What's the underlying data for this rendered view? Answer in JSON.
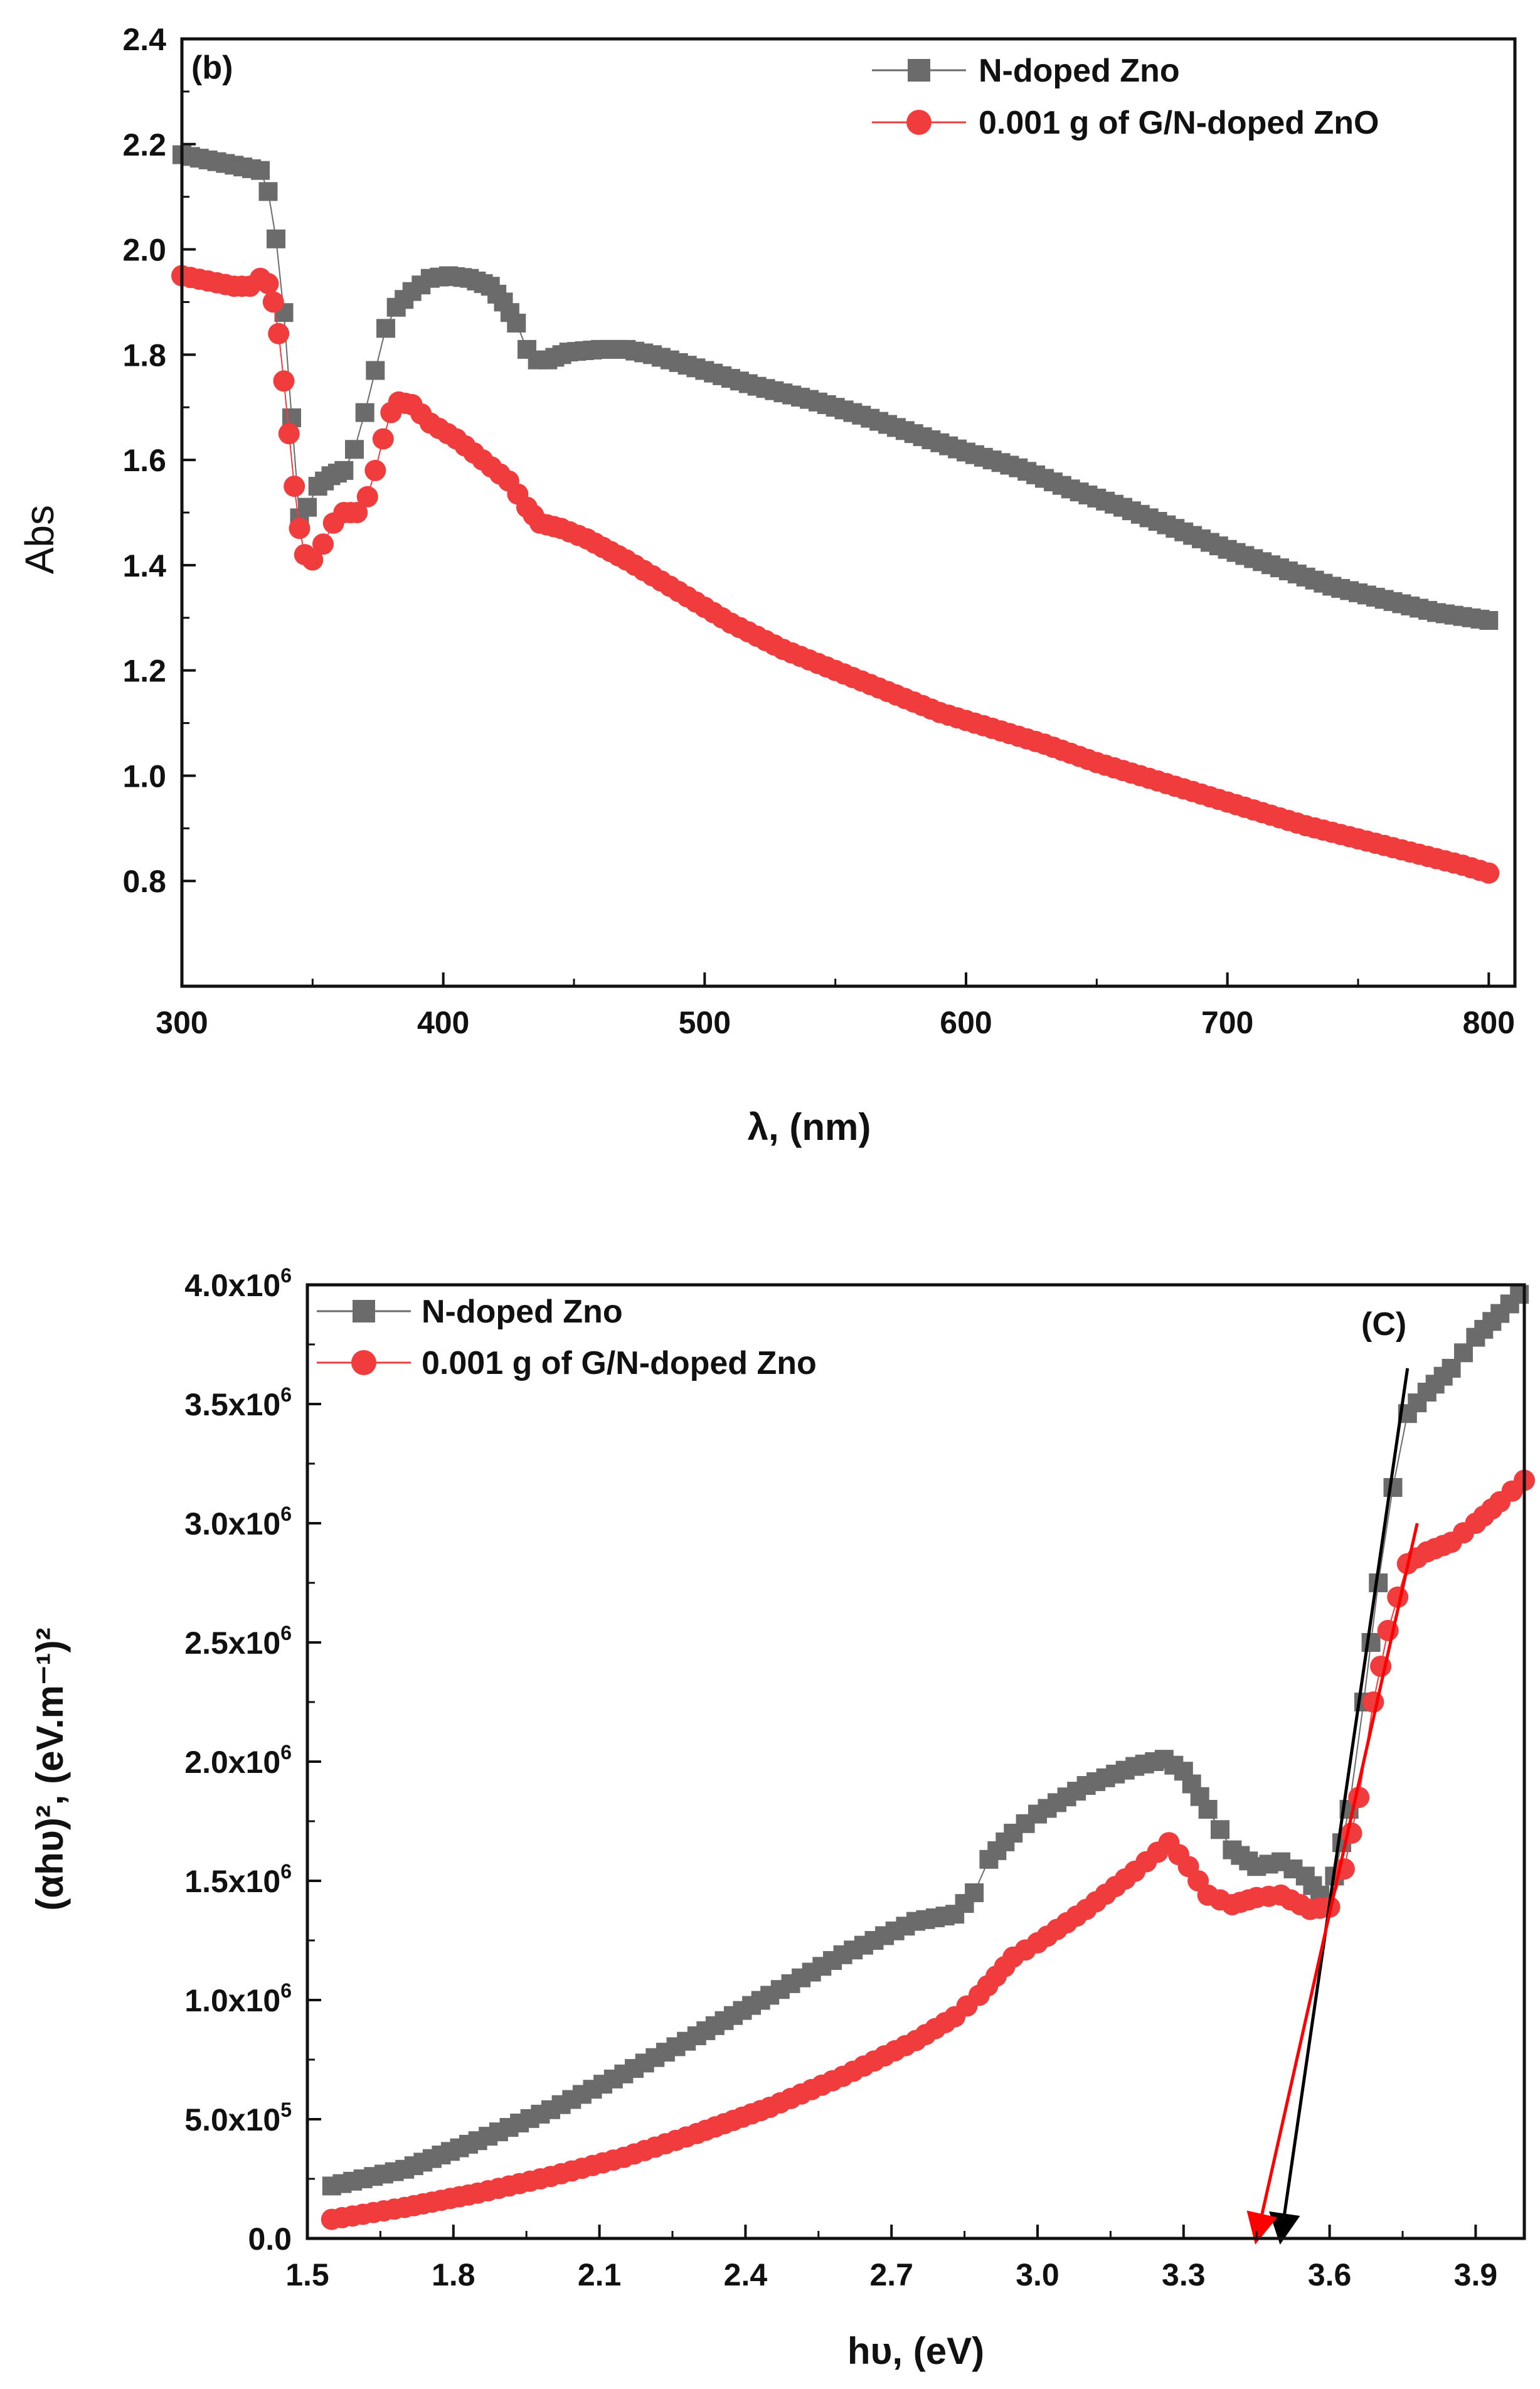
{
  "chart_data": [
    {
      "type": "scatter",
      "panel_label": "(b)",
      "xlabel": "λ, (nm)",
      "ylabel": "Abs",
      "xlim": [
        300,
        810
      ],
      "ylim": [
        0.6,
        2.4
      ],
      "x_ticks": [
        "300",
        "400",
        "500",
        "600",
        "700",
        "800"
      ],
      "y_ticks": [
        "0.8",
        "1.0",
        "1.2",
        "1.4",
        "1.6",
        "1.8",
        "2.0",
        "2.2",
        "2.4"
      ],
      "legend_position": "top-right",
      "series": [
        {
          "name": "N-doped Zno",
          "marker": "square",
          "color": "#6b6b6b",
          "points": [
            [
              300,
              2.18
            ],
            [
              310,
              2.17
            ],
            [
              320,
              2.16
            ],
            [
              330,
              2.15
            ],
            [
              333,
              2.11
            ],
            [
              336,
              2.02
            ],
            [
              339,
              1.88
            ],
            [
              342,
              1.68
            ],
            [
              345,
              1.49
            ],
            [
              348,
              1.51
            ],
            [
              352,
              1.55
            ],
            [
              357,
              1.57
            ],
            [
              362,
              1.58
            ],
            [
              366,
              1.62
            ],
            [
              370,
              1.69
            ],
            [
              374,
              1.77
            ],
            [
              378,
              1.85
            ],
            [
              382,
              1.89
            ],
            [
              388,
              1.92
            ],
            [
              395,
              1.945
            ],
            [
              402,
              1.95
            ],
            [
              410,
              1.945
            ],
            [
              418,
              1.93
            ],
            [
              423,
              1.9
            ],
            [
              428,
              1.86
            ],
            [
              432,
              1.81
            ],
            [
              436,
              1.79
            ],
            [
              440,
              1.79
            ],
            [
              448,
              1.805
            ],
            [
              460,
              1.81
            ],
            [
              470,
              1.81
            ],
            [
              480,
              1.8
            ],
            [
              500,
              1.77
            ],
            [
              520,
              1.74
            ],
            [
              540,
              1.715
            ],
            [
              560,
              1.685
            ],
            [
              580,
              1.65
            ],
            [
              600,
              1.615
            ],
            [
              620,
              1.585
            ],
            [
              640,
              1.545
            ],
            [
              660,
              1.51
            ],
            [
              680,
              1.47
            ],
            [
              700,
              1.43
            ],
            [
              720,
              1.395
            ],
            [
              740,
              1.36
            ],
            [
              760,
              1.335
            ],
            [
              780,
              1.31
            ],
            [
              800,
              1.295
            ]
          ]
        },
        {
          "name": "0.001 g of G/N-doped ZnO",
          "marker": "circle",
          "color": "#f03c3c",
          "points": [
            [
              300,
              1.95
            ],
            [
              310,
              1.94
            ],
            [
              320,
              1.93
            ],
            [
              326,
              1.93
            ],
            [
              330,
              1.945
            ],
            [
              333,
              1.935
            ],
            [
              335,
              1.9
            ],
            [
              337,
              1.84
            ],
            [
              339,
              1.75
            ],
            [
              341,
              1.65
            ],
            [
              343,
              1.55
            ],
            [
              345,
              1.47
            ],
            [
              347,
              1.42
            ],
            [
              350,
              1.41
            ],
            [
              354,
              1.44
            ],
            [
              358,
              1.48
            ],
            [
              362,
              1.5
            ],
            [
              367,
              1.5
            ],
            [
              371,
              1.53
            ],
            [
              374,
              1.58
            ],
            [
              377,
              1.64
            ],
            [
              380,
              1.69
            ],
            [
              383,
              1.71
            ],
            [
              388,
              1.705
            ],
            [
              395,
              1.67
            ],
            [
              405,
              1.64
            ],
            [
              415,
              1.6
            ],
            [
              425,
              1.56
            ],
            [
              432,
              1.51
            ],
            [
              437,
              1.48
            ],
            [
              445,
              1.47
            ],
            [
              455,
              1.45
            ],
            [
              470,
              1.41
            ],
            [
              490,
              1.35
            ],
            [
              510,
              1.29
            ],
            [
              530,
              1.24
            ],
            [
              550,
              1.2
            ],
            [
              570,
              1.16
            ],
            [
              590,
              1.12
            ],
            [
              610,
              1.09
            ],
            [
              630,
              1.06
            ],
            [
              650,
              1.025
            ],
            [
              670,
              0.995
            ],
            [
              690,
              0.965
            ],
            [
              710,
              0.935
            ],
            [
              730,
              0.905
            ],
            [
              750,
              0.88
            ],
            [
              770,
              0.855
            ],
            [
              790,
              0.83
            ],
            [
              800,
              0.815
            ]
          ]
        }
      ]
    },
    {
      "type": "scatter",
      "panel_label": "(C)",
      "xlabel": "hυ, (eV)",
      "ylabel": "(αhυ)², (eV.m⁻¹)²",
      "xlim": [
        1.5,
        4.0
      ],
      "ylim": [
        0,
        4000000
      ],
      "x_ticks": [
        "1.5",
        "1.8",
        "2.1",
        "2.4",
        "2.7",
        "3.0",
        "3.3",
        "3.6",
        "3.9"
      ],
      "y_ticks": [
        {
          "label": "0.0",
          "mant": "",
          "exp": ""
        },
        {
          "label": "5.0x10",
          "mant": "5.0x10",
          "exp": "5"
        },
        {
          "label": "1.0x10",
          "mant": "1.0x10",
          "exp": "6"
        },
        {
          "label": "1.5x10",
          "mant": "1.5x10",
          "exp": "6"
        },
        {
          "label": "2.0x10",
          "mant": "2.0x10",
          "exp": "6"
        },
        {
          "label": "2.5x10",
          "mant": "2.5x10",
          "exp": "6"
        },
        {
          "label": "3.0x10",
          "mant": "3.0x10",
          "exp": "6"
        },
        {
          "label": "3.5x10",
          "mant": "3.5x10",
          "exp": "6"
        },
        {
          "label": "4.0x10",
          "mant": "4.0x10",
          "exp": "6"
        }
      ],
      "legend_position": "top-left",
      "series": [
        {
          "name": "N-doped Zno",
          "marker": "square",
          "color": "#6b6b6b",
          "points": [
            [
              1.55,
              220000
            ],
            [
              1.7,
              290000
            ],
            [
              1.85,
              410000
            ],
            [
              2.0,
              540000
            ],
            [
              2.15,
              690000
            ],
            [
              2.3,
              850000
            ],
            [
              2.45,
              1020000
            ],
            [
              2.6,
              1190000
            ],
            [
              2.75,
              1330000
            ],
            [
              2.83,
              1360000
            ],
            [
              2.87,
              1450000
            ],
            [
              2.9,
              1590000
            ],
            [
              2.95,
              1700000
            ],
            [
              3.0,
              1780000
            ],
            [
              3.1,
              1900000
            ],
            [
              3.2,
              1980000
            ],
            [
              3.26,
              2010000
            ],
            [
              3.3,
              1960000
            ],
            [
              3.35,
              1800000
            ],
            [
              3.4,
              1630000
            ],
            [
              3.45,
              1560000
            ],
            [
              3.5,
              1580000
            ],
            [
              3.55,
              1520000
            ],
            [
              3.58,
              1440000
            ],
            [
              3.61,
              1520000
            ],
            [
              3.64,
              1800000
            ],
            [
              3.67,
              2250000
            ],
            [
              3.7,
              2750000
            ],
            [
              3.73,
              3150000
            ],
            [
              3.76,
              3460000
            ],
            [
              3.8,
              3550000
            ],
            [
              3.85,
              3650000
            ],
            [
              3.9,
              3780000
            ],
            [
              3.95,
              3880000
            ],
            [
              3.99,
              3960000
            ]
          ]
        },
        {
          "name": "0.001 g of G/N-doped Zno",
          "marker": "circle",
          "color": "#f03c3c",
          "points": [
            [
              1.55,
              80000
            ],
            [
              1.7,
              130000
            ],
            [
              1.85,
              190000
            ],
            [
              2.0,
              260000
            ],
            [
              2.15,
              340000
            ],
            [
              2.3,
              440000
            ],
            [
              2.45,
              550000
            ],
            [
              2.6,
              680000
            ],
            [
              2.75,
              830000
            ],
            [
              2.83,
              930000
            ],
            [
              2.88,
              1020000
            ],
            [
              2.95,
              1180000
            ],
            [
              3.0,
              1240000
            ],
            [
              3.1,
              1380000
            ],
            [
              3.2,
              1540000
            ],
            [
              3.27,
              1660000
            ],
            [
              3.31,
              1560000
            ],
            [
              3.35,
              1440000
            ],
            [
              3.4,
              1400000
            ],
            [
              3.45,
              1430000
            ],
            [
              3.5,
              1440000
            ],
            [
              3.56,
              1380000
            ],
            [
              3.6,
              1390000
            ],
            [
              3.63,
              1550000
            ],
            [
              3.66,
              1850000
            ],
            [
              3.69,
              2250000
            ],
            [
              3.72,
              2550000
            ],
            [
              3.76,
              2830000
            ],
            [
              3.8,
              2880000
            ],
            [
              3.85,
              2920000
            ],
            [
              3.9,
              3000000
            ],
            [
              3.95,
              3090000
            ],
            [
              4.0,
              3180000
            ]
          ]
        }
      ],
      "fit_lines": [
        {
          "color": "#000000",
          "from": [
            3.76,
            3650000
          ],
          "to": [
            3.5,
            0
          ]
        },
        {
          "color": "#ff0000",
          "from": [
            3.78,
            3000000
          ],
          "to": [
            3.45,
            0
          ]
        }
      ]
    }
  ]
}
